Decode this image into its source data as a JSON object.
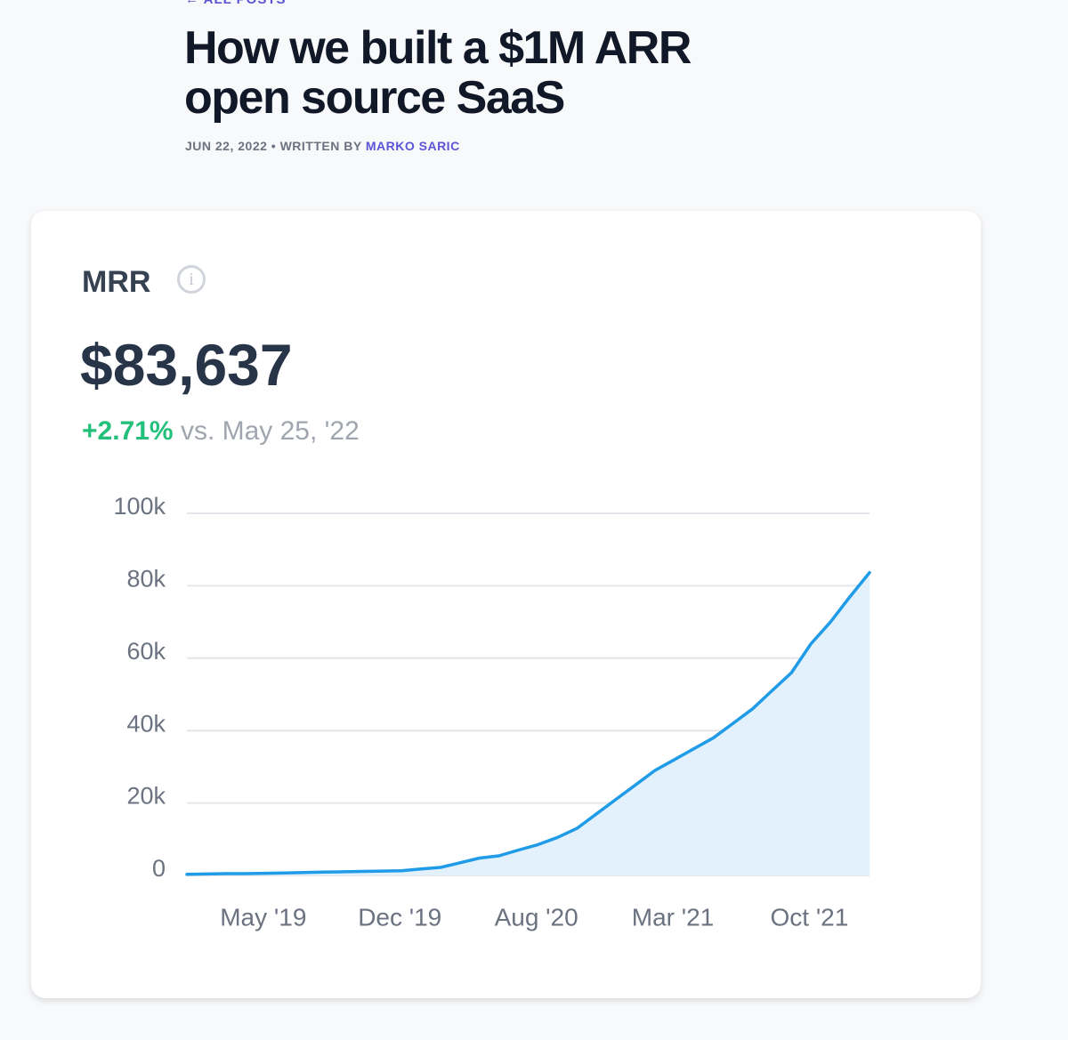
{
  "header": {
    "back_link": "← ALL POSTS",
    "title_line1": "How we built a $1M ARR",
    "title_line2": "open source SaaS",
    "date": "JUN 22, 2022",
    "separator": "•",
    "written_by": "WRITTEN BY",
    "author": "MARKO SARIC"
  },
  "card": {
    "metric": "MRR",
    "info_icon": "i",
    "amount": "$83,637",
    "change": "+2.71%",
    "comparison": "vs. May 25, '22"
  },
  "chart_data": {
    "type": "area",
    "categories": [
      null,
      null,
      "May '19",
      null,
      null,
      null,
      null,
      null,
      null,
      "Dec '19",
      null,
      null,
      null,
      null,
      null,
      null,
      "Aug '20",
      null,
      null,
      null,
      null,
      null,
      null,
      "Mar '21",
      null,
      null,
      null,
      null,
      null,
      null,
      "Oct '21",
      null,
      null,
      null,
      null,
      null
    ],
    "values": [
      300,
      400,
      500,
      500,
      600,
      700,
      800,
      900,
      1000,
      1100,
      1200,
      1300,
      1800,
      2200,
      3500,
      4800,
      5400,
      7000,
      8500,
      10500,
      13000,
      17000,
      21000,
      25000,
      29000,
      32000,
      35000,
      38000,
      42000,
      46000,
      51000,
      56000,
      64000,
      70000,
      77000,
      83637
    ],
    "color": "#1f9be8",
    "fill": "#e2f1fc",
    "ylim": [
      0,
      100000
    ],
    "yticks": [
      0,
      {
        "value": 20000,
        "label": "20k"
      },
      {
        "value": 40000,
        "label": "40k"
      },
      {
        "value": 60000,
        "label": "60k"
      },
      {
        "value": 80000,
        "label": "80k"
      },
      {
        "value": 100000,
        "label": "100k"
      }
    ],
    "grid": true
  }
}
